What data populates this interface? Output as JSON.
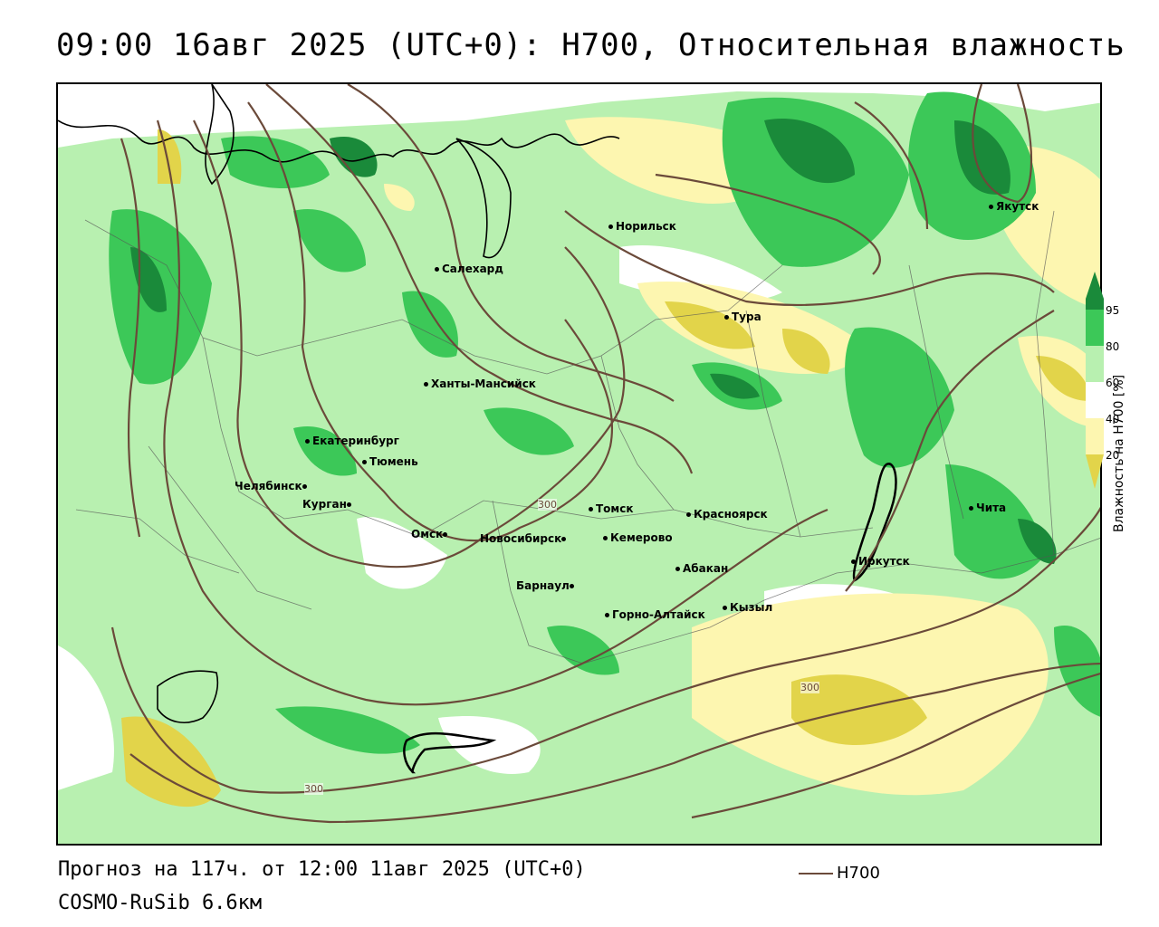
{
  "title": "09:00 16авг 2025 (UTC+0): H700, Относительная влажность",
  "footer": {
    "forecast": "Прогноз на 117ч. от 12:00 11авг 2025 (UTC+0)",
    "model": "COSMO-RuSib 6.6км",
    "line_legend": "H700"
  },
  "legend": {
    "title": "Влажность на H700 [%]",
    "ticks": [
      "95",
      "80",
      "60",
      "40",
      "20"
    ],
    "colors": {
      "c95": "#1a8a3a",
      "c80": "#3cc858",
      "c60": "#b8f0b0",
      "c50": "#ffffff",
      "c40": "#fdf6b0",
      "c20": "#e2d44a"
    }
  },
  "contour_color": "#6b4a3a",
  "contour_labels": [
    "300",
    "300",
    "300"
  ],
  "cities": [
    {
      "name": "Норильск"
    },
    {
      "name": "Якутск"
    },
    {
      "name": "Салехард"
    },
    {
      "name": "Тура"
    },
    {
      "name": "Ханты-Мансийск"
    },
    {
      "name": "Екатеринбург"
    },
    {
      "name": "Тюмень"
    },
    {
      "name": "Челябинск"
    },
    {
      "name": "Курган"
    },
    {
      "name": "Омск"
    },
    {
      "name": "Новосибирск"
    },
    {
      "name": "Томск"
    },
    {
      "name": "Кемерово"
    },
    {
      "name": "Красноярск"
    },
    {
      "name": "Абакан"
    },
    {
      "name": "Барнаул"
    },
    {
      "name": "Горно-Алтайск"
    },
    {
      "name": "Кызыл"
    },
    {
      "name": "Иркутск"
    },
    {
      "name": "Чита"
    }
  ]
}
